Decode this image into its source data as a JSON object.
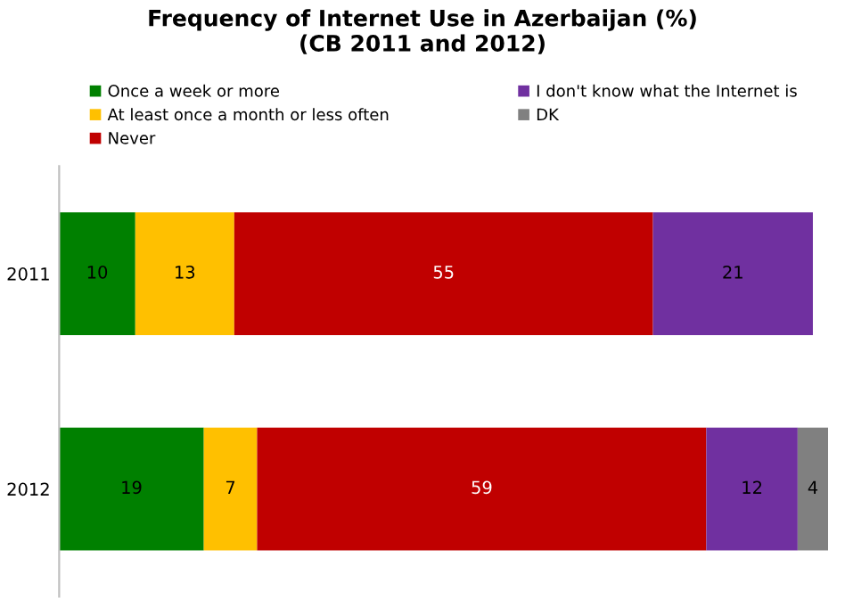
{
  "chart_data": {
    "type": "bar",
    "orientation": "horizontal",
    "stacked": true,
    "data_labels": true,
    "title": "Frequency of Internet Use in Azerbaijan (%)\n(CB 2011 and 2012)",
    "categories": [
      "2011",
      "2012"
    ],
    "legend": "top",
    "grid": false,
    "series": [
      {
        "name": "Once a week or more",
        "color": "#008000",
        "values": [
          10,
          19
        ]
      },
      {
        "name": "At least once a month or less often",
        "color": "#ffc000",
        "values": [
          13,
          7
        ]
      },
      {
        "name": "Never",
        "color": "#c00000",
        "values": [
          55,
          59
        ]
      },
      {
        "name": "I don't know what the Internet is",
        "color": "#7030a0",
        "values": [
          21,
          12
        ]
      },
      {
        "name": "DK",
        "color": "#808080",
        "values": [
          null,
          4
        ]
      }
    ]
  }
}
